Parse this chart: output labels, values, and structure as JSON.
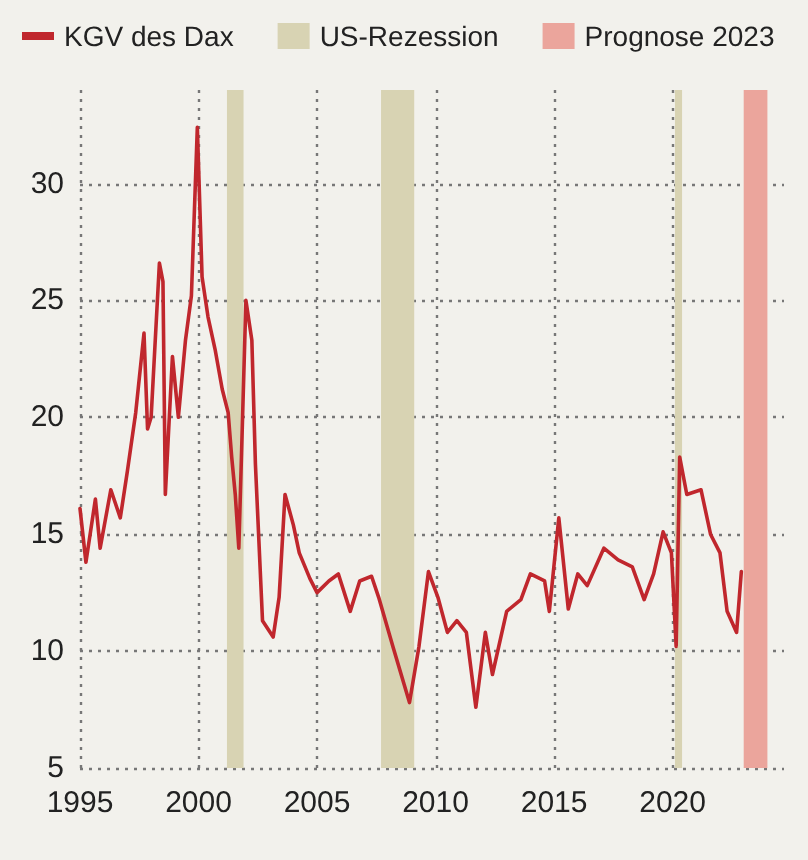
{
  "chart_data": {
    "type": "line",
    "x": [
      1995.0,
      1995.25,
      1995.65,
      1995.85,
      1996.3,
      1996.7,
      1997.0,
      1997.35,
      1997.7,
      1997.85,
      1998.0,
      1998.35,
      1998.5,
      1998.6,
      1998.9,
      1999.15,
      1999.45,
      1999.7,
      1999.95,
      2000.15,
      2000.4,
      2000.7,
      2001.0,
      2001.25,
      2001.4,
      2001.55,
      2001.7,
      2002.0,
      2002.25,
      2002.4,
      2002.7,
      2003.15,
      2003.4,
      2003.65,
      2004.0,
      2004.25,
      2004.7,
      2005.0,
      2005.5,
      2005.9,
      2006.4,
      2006.8,
      2007.3,
      2007.6,
      2008.2,
      2008.9,
      2009.3,
      2009.7,
      2010.1,
      2010.5,
      2010.9,
      2011.3,
      2011.7,
      2012.1,
      2012.4,
      2013.0,
      2013.6,
      2014.0,
      2014.6,
      2014.8,
      2015.2,
      2015.6,
      2016.0,
      2016.4,
      2017.1,
      2017.7,
      2018.3,
      2018.8,
      2019.2,
      2019.6,
      2019.95,
      2020.15,
      2020.3,
      2020.6,
      2021.2,
      2021.6,
      2022.0,
      2022.3,
      2022.7,
      2022.9
    ],
    "series": [
      {
        "name": "KGV des Dax",
        "color": "#c0272d",
        "values": [
          16.1,
          13.8,
          16.5,
          14.4,
          16.9,
          15.7,
          17.7,
          20.2,
          23.6,
          19.5,
          20.0,
          26.6,
          25.8,
          16.7,
          22.6,
          20.0,
          23.3,
          25.2,
          32.4,
          26.0,
          24.3,
          22.9,
          21.2,
          20.2,
          18.3,
          16.7,
          14.4,
          25.0,
          23.3,
          18.0,
          11.3,
          10.6,
          12.3,
          16.7,
          15.4,
          14.2,
          13.1,
          12.5,
          13.0,
          13.3,
          11.7,
          13.0,
          13.2,
          12.3,
          10.2,
          7.8,
          10.2,
          13.4,
          12.3,
          10.8,
          11.3,
          10.8,
          7.6,
          10.8,
          9.0,
          11.7,
          12.2,
          13.3,
          13.0,
          11.7,
          15.7,
          11.8,
          13.3,
          12.8,
          14.4,
          13.9,
          13.6,
          12.2,
          13.3,
          15.1,
          14.2,
          10.2,
          18.3,
          16.7,
          16.9,
          15.0,
          14.2,
          11.7,
          10.8,
          13.4
        ]
      }
    ],
    "xlim": [
      1995,
      2024.7
    ],
    "xticks": [
      1995,
      2000,
      2005,
      2010,
      2015,
      2020
    ],
    "ylim": [
      5,
      34
    ],
    "yticks": [
      5,
      10,
      15,
      20,
      25,
      30
    ],
    "bands": [
      {
        "axis": "x",
        "from": 2001.2,
        "to": 2001.9,
        "label": "US-Rezession",
        "color": "#d8d3b3"
      },
      {
        "axis": "x",
        "from": 2007.7,
        "to": 2009.1,
        "color": "#d8d3b3"
      },
      {
        "axis": "x",
        "from": 2020.1,
        "to": 2020.4,
        "color": "#d8d3b3"
      },
      {
        "axis": "x",
        "from": 2023.0,
        "to": 2024.0,
        "label": "Prognose 2023",
        "color": "#eba59c"
      }
    ],
    "grid": true,
    "legend": "top",
    "marker": "none",
    "line_style": "solid"
  }
}
